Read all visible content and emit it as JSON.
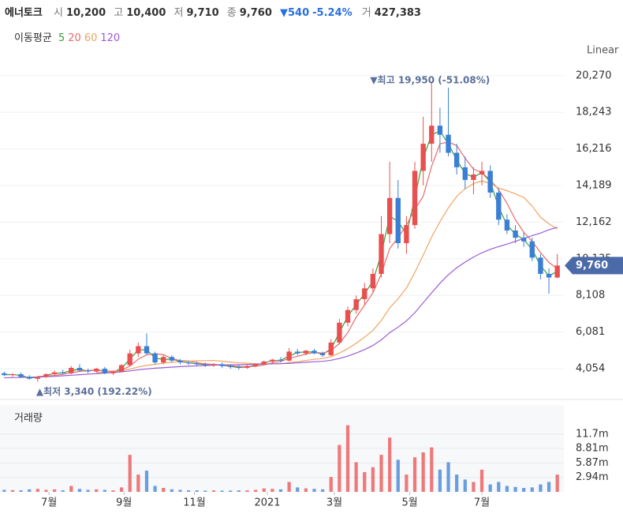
{
  "header": {
    "name": "에너토크",
    "open_label": "시",
    "open": "10,200",
    "high_label": "고",
    "high": "10,400",
    "low_label": "저",
    "low": "9,710",
    "close_label": "종",
    "close": "9,760",
    "change": "▼540",
    "change_pct": "-5.24%",
    "volume_label": "거",
    "volume": "427,383"
  },
  "chart_data": {
    "type": "candlestick",
    "scale_label": "Linear",
    "ma_label": "이동평균",
    "up_color": "#e94f4f",
    "down_color": "#3a7fd5",
    "grid": true,
    "xlim": [
      -0.5,
      66.5
    ],
    "xticks": [
      {
        "value": 5.35,
        "label": "7월"
      },
      {
        "value": 14.3,
        "label": "9월"
      },
      {
        "value": 22.7,
        "label": "11월"
      },
      {
        "value": 31.4,
        "label": "2021"
      },
      {
        "value": 39.4,
        "label": "3월"
      },
      {
        "value": 48.4,
        "label": "5월"
      },
      {
        "value": 57.0,
        "label": "7월"
      }
    ],
    "ylim": [
      2394,
      21179
    ],
    "yticks": [
      {
        "value": 4054,
        "label": "4,054"
      },
      {
        "value": 6081,
        "label": "6,081"
      },
      {
        "value": 8108,
        "label": "8,108"
      },
      {
        "value": 10135,
        "label": "10,135"
      },
      {
        "value": 12162,
        "label": "12,162"
      },
      {
        "value": 14189,
        "label": "14,189"
      },
      {
        "value": 16216,
        "label": "16,216"
      },
      {
        "value": 18243,
        "label": "18,243"
      },
      {
        "value": 20270,
        "label": "20,270"
      }
    ],
    "annotations": [
      {
        "text": "▼최고 19,950 (-51.08%)",
        "value": 19950,
        "x": 51
      },
      {
        "text": "▲최저 3,340 (192.22%)",
        "value": 3340,
        "x": 4
      }
    ],
    "last_price": {
      "value": 9760,
      "label": "9,760",
      "color": "#4a6aa8"
    },
    "candles": [
      {
        "open": 3800,
        "high": 3900,
        "low": 3650,
        "close": 3700
      },
      {
        "open": 3700,
        "high": 3800,
        "low": 3600,
        "close": 3750
      },
      {
        "open": 3750,
        "high": 3850,
        "low": 3550,
        "close": 3600
      },
      {
        "open": 3600,
        "high": 3700,
        "low": 3450,
        "close": 3500
      },
      {
        "open": 3500,
        "high": 3650,
        "low": 3340,
        "close": 3600
      },
      {
        "open": 3600,
        "high": 3800,
        "low": 3550,
        "close": 3750
      },
      {
        "open": 3750,
        "high": 3950,
        "low": 3700,
        "close": 3850
      },
      {
        "open": 3850,
        "high": 4000,
        "low": 3750,
        "close": 3800
      },
      {
        "open": 3800,
        "high": 4200,
        "low": 3750,
        "close": 4100
      },
      {
        "open": 4100,
        "high": 4300,
        "low": 3900,
        "close": 3950
      },
      {
        "open": 3950,
        "high": 4050,
        "low": 3800,
        "close": 3900
      },
      {
        "open": 3900,
        "high": 4100,
        "low": 3850,
        "close": 4050
      },
      {
        "open": 4050,
        "high": 4150,
        "low": 3750,
        "close": 3800
      },
      {
        "open": 3800,
        "high": 3950,
        "low": 3700,
        "close": 3900
      },
      {
        "open": 3900,
        "high": 4300,
        "low": 3850,
        "close": 4250
      },
      {
        "open": 4250,
        "high": 5100,
        "low": 4200,
        "close": 4900
      },
      {
        "open": 4900,
        "high": 5500,
        "low": 4700,
        "close": 5300
      },
      {
        "open": 5300,
        "high": 6000,
        "low": 4800,
        "close": 4900
      },
      {
        "open": 4900,
        "high": 5000,
        "low": 4300,
        "close": 4400
      },
      {
        "open": 4400,
        "high": 4800,
        "low": 4300,
        "close": 4700
      },
      {
        "open": 4700,
        "high": 4800,
        "low": 4400,
        "close": 4500
      },
      {
        "open": 4500,
        "high": 4600,
        "low": 4300,
        "close": 4400
      },
      {
        "open": 4400,
        "high": 4500,
        "low": 4250,
        "close": 4350
      },
      {
        "open": 4350,
        "high": 4450,
        "low": 4200,
        "close": 4300
      },
      {
        "open": 4300,
        "high": 4400,
        "low": 4150,
        "close": 4250
      },
      {
        "open": 4250,
        "high": 4350,
        "low": 4150,
        "close": 4300
      },
      {
        "open": 4300,
        "high": 4400,
        "low": 4100,
        "close": 4200
      },
      {
        "open": 4200,
        "high": 4300,
        "low": 4050,
        "close": 4150
      },
      {
        "open": 4150,
        "high": 4250,
        "low": 4000,
        "close": 4100
      },
      {
        "open": 4100,
        "high": 4250,
        "low": 4050,
        "close": 4200
      },
      {
        "open": 4200,
        "high": 4350,
        "low": 4150,
        "close": 4300
      },
      {
        "open": 4300,
        "high": 4500,
        "low": 4250,
        "close": 4450
      },
      {
        "open": 4450,
        "high": 4600,
        "low": 4350,
        "close": 4550
      },
      {
        "open": 4550,
        "high": 4700,
        "low": 4400,
        "close": 4500
      },
      {
        "open": 4500,
        "high": 5200,
        "low": 4450,
        "close": 5000
      },
      {
        "open": 5000,
        "high": 5150,
        "low": 4800,
        "close": 4900
      },
      {
        "open": 4900,
        "high": 5100,
        "low": 4800,
        "close": 5050
      },
      {
        "open": 5050,
        "high": 5150,
        "low": 4850,
        "close": 4900
      },
      {
        "open": 4900,
        "high": 5000,
        "low": 4700,
        "close": 4800
      },
      {
        "open": 4800,
        "high": 5700,
        "low": 4750,
        "close": 5500
      },
      {
        "open": 5500,
        "high": 6800,
        "low": 5400,
        "close": 6600
      },
      {
        "open": 6600,
        "high": 7500,
        "low": 6400,
        "close": 7300
      },
      {
        "open": 7300,
        "high": 8100,
        "low": 7100,
        "close": 7900
      },
      {
        "open": 7900,
        "high": 8800,
        "low": 7600,
        "close": 8500
      },
      {
        "open": 8500,
        "high": 9600,
        "low": 8300,
        "close": 9300
      },
      {
        "open": 9300,
        "high": 12500,
        "low": 9100,
        "close": 11500
      },
      {
        "open": 11500,
        "high": 15500,
        "low": 11000,
        "close": 13500
      },
      {
        "open": 13500,
        "high": 14500,
        "low": 10700,
        "close": 11000
      },
      {
        "open": 11000,
        "high": 12500,
        "low": 10400,
        "close": 12000
      },
      {
        "open": 12000,
        "high": 15500,
        "low": 11800,
        "close": 15000
      },
      {
        "open": 15000,
        "high": 18000,
        "low": 14200,
        "close": 16500
      },
      {
        "open": 16500,
        "high": 19950,
        "low": 15500,
        "close": 17500
      },
      {
        "open": 17500,
        "high": 18500,
        "low": 16000,
        "close": 17000
      },
      {
        "open": 17000,
        "high": 19600,
        "low": 15800,
        "close": 16000
      },
      {
        "open": 16000,
        "high": 16500,
        "low": 14800,
        "close": 15200
      },
      {
        "open": 15200,
        "high": 15800,
        "low": 14000,
        "close": 14500
      },
      {
        "open": 14500,
        "high": 15200,
        "low": 13700,
        "close": 14800
      },
      {
        "open": 14800,
        "high": 15500,
        "low": 14200,
        "close": 15000
      },
      {
        "open": 15000,
        "high": 15300,
        "low": 13500,
        "close": 13800
      },
      {
        "open": 13800,
        "high": 14000,
        "low": 12000,
        "close": 12300
      },
      {
        "open": 12300,
        "high": 12600,
        "low": 11500,
        "close": 11700
      },
      {
        "open": 11700,
        "high": 12000,
        "low": 11000,
        "close": 11300
      },
      {
        "open": 11300,
        "high": 11600,
        "low": 10800,
        "close": 11100
      },
      {
        "open": 11100,
        "high": 11300,
        "low": 10000,
        "close": 10200
      },
      {
        "open": 10200,
        "high": 10400,
        "low": 9000,
        "close": 9300
      },
      {
        "open": 9300,
        "high": 9600,
        "low": 8200,
        "close": 9100
      },
      {
        "open": 9100,
        "high": 10400,
        "low": 9050,
        "close": 9760
      }
    ],
    "series": [
      {
        "name": "5",
        "color": "#3a9e3a",
        "values": [
          3720,
          3730,
          3680,
          3550,
          3560,
          3680,
          3800,
          3820,
          3950,
          4020,
          3920,
          3980,
          3920,
          3850,
          4080,
          4580,
          5100,
          5100,
          4650,
          4550,
          4600,
          4450,
          4380,
          4320,
          4280,
          4280,
          4250,
          4180,
          4120,
          4150,
          4250,
          4380,
          4500,
          4520,
          4750,
          4950,
          4980,
          4980,
          4850,
          5150,
          6050,
          6950,
          7600,
          8200,
          8900,
          10400,
          12500,
          12200,
          11500,
          13500,
          15700,
          17000,
          17200,
          16500,
          15600,
          14850,
          14650,
          14900,
          14400,
          13000,
          12000,
          11500,
          11200,
          10650,
          9750,
          9200,
          9430
        ]
      },
      {
        "name": "20",
        "color": "#e86a6a",
        "values": [
          null,
          null,
          null,
          null,
          3620,
          3640,
          3680,
          3740,
          3830,
          3900,
          3950,
          3980,
          3930,
          3910,
          3970,
          4200,
          4580,
          4820,
          4880,
          4830,
          4620,
          4500,
          4480,
          4380,
          4320,
          4290,
          4260,
          4220,
          4180,
          4160,
          4190,
          4260,
          4380,
          4450,
          4630,
          4740,
          4860,
          4960,
          4910,
          5060,
          5450,
          6050,
          6900,
          7570,
          8250,
          9300,
          10700,
          11300,
          12000,
          12870,
          13600,
          15250,
          16500,
          16600,
          16400,
          15700,
          15100,
          14900,
          14500,
          13970,
          13200,
          12300,
          11600,
          11100,
          10480,
          9930,
          9590
        ]
      },
      {
        "name": "60",
        "color": "#f0a562",
        "values": [
          null,
          null,
          null,
          null,
          null,
          null,
          null,
          null,
          null,
          null,
          null,
          3830,
          3860,
          3880,
          3930,
          4030,
          4150,
          4240,
          4290,
          4360,
          4410,
          4450,
          4470,
          4490,
          4500,
          4510,
          4470,
          4420,
          4380,
          4360,
          4330,
          4320,
          4320,
          4330,
          4390,
          4440,
          4510,
          4570,
          4620,
          4720,
          4920,
          5170,
          5460,
          5800,
          6170,
          6720,
          7420,
          7920,
          8520,
          9380,
          10340,
          11340,
          12190,
          12950,
          13590,
          14010,
          14300,
          14440,
          14310,
          14050,
          13900,
          13730,
          13530,
          13050,
          12430,
          12070,
          11780
        ]
      },
      {
        "name": "120",
        "color": "#9b5cd6",
        "values": [
          3550,
          3560,
          3570,
          3580,
          3590,
          3610,
          3630,
          3660,
          3690,
          3720,
          3750,
          3780,
          3810,
          3840,
          3880,
          3930,
          3990,
          4040,
          4080,
          4110,
          4140,
          4170,
          4190,
          4210,
          4230,
          4250,
          4260,
          4270,
          4280,
          4290,
          4300,
          4310,
          4320,
          4330,
          4350,
          4380,
          4410,
          4440,
          4460,
          4520,
          4620,
          4750,
          4920,
          5110,
          5340,
          5650,
          6050,
          6350,
          6700,
          7150,
          7700,
          8250,
          8780,
          9250,
          9640,
          9950,
          10230,
          10470,
          10660,
          10810,
          10950,
          11100,
          11260,
          11420,
          11560,
          11740,
          11880
        ]
      }
    ],
    "volume": {
      "title": "거래량",
      "ylim": [
        0,
        16800000
      ],
      "yticks": [
        {
          "value": 2940000,
          "label": "2.94m"
        },
        {
          "value": 5870000,
          "label": "5.87m"
        },
        {
          "value": 8810000,
          "label": "8.81m"
        },
        {
          "value": 11700000,
          "label": "11.7m"
        }
      ],
      "values": [
        400000,
        350000,
        300000,
        500000,
        600000,
        400000,
        500000,
        300000,
        1200000,
        600000,
        400000,
        500000,
        400000,
        300000,
        900000,
        7500000,
        3500000,
        4300000,
        1200000,
        800000,
        500000,
        400000,
        300000,
        300000,
        250000,
        300000,
        250000,
        250000,
        300000,
        300000,
        400000,
        700000,
        600000,
        500000,
        2000000,
        900000,
        700000,
        600000,
        500000,
        3000000,
        9500000,
        13500000,
        6000000,
        4000000,
        5000000,
        7500000,
        11000000,
        6500000,
        3500000,
        7000000,
        8000000,
        9000000,
        4500000,
        6000000,
        3500000,
        2500000,
        2000000,
        4500000,
        1500000,
        2000000,
        1200000,
        1000000,
        800000,
        900000,
        1500000,
        2000000,
        3500000
      ]
    }
  }
}
